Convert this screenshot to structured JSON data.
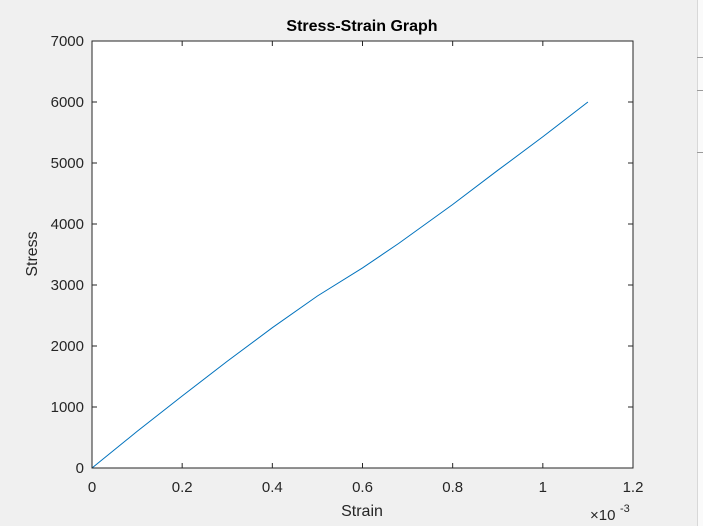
{
  "chart_data": {
    "type": "line",
    "title": "Stress-Strain Graph",
    "xlabel": "Strain",
    "ylabel": "Stress",
    "x_multiplier_label": "×10",
    "x_multiplier_exponent": "-3",
    "xlim": [
      0,
      1.2
    ],
    "ylim": [
      0,
      7000
    ],
    "x_tick_values": [
      0,
      0.2,
      0.4,
      0.6,
      0.8,
      1,
      1.2
    ],
    "x_tick_labels": [
      "0",
      "0.2",
      "0.4",
      "0.6",
      "0.8",
      "1",
      "1.2"
    ],
    "y_tick_values": [
      0,
      1000,
      2000,
      3000,
      4000,
      5000,
      6000,
      7000
    ],
    "y_tick_labels": [
      "0",
      "1000",
      "2000",
      "3000",
      "4000",
      "5000",
      "6000",
      "7000"
    ],
    "grid": false,
    "series": [
      {
        "color": "#0072bd",
        "x": [
          0,
          0.1,
          0.2,
          0.3,
          0.4,
          0.5,
          0.6,
          0.68,
          0.8,
          0.9,
          1.0,
          1.1
        ],
        "y": [
          0,
          600,
          1180,
          1750,
          2300,
          2820,
          3280,
          3680,
          4320,
          4880,
          5430,
          6000
        ]
      }
    ]
  }
}
